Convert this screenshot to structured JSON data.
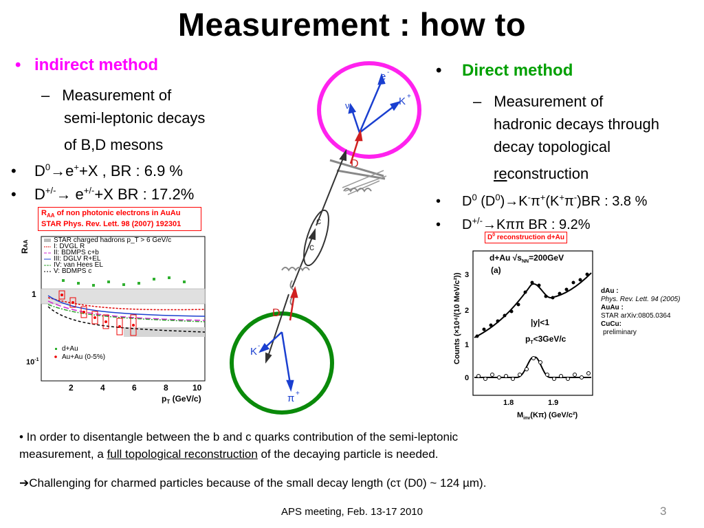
{
  "title": "Measurement : how to",
  "indirect": {
    "heading": "indirect method",
    "sub_line1": "Measurement of",
    "sub_line2": "semi-leptonic decays",
    "sub_line3": "of B,D mesons",
    "b1_prefix": "D",
    "b1_text": "+X , BR : 6.9 %",
    "b2_prefix": "D",
    "b2_text": "+X  BR : 17.2%"
  },
  "direct": {
    "heading": "Direct method",
    "sub_line1": "Measurement of",
    "sub_line2": "hadronic decays through",
    "sub_line3": "decay topological",
    "sub_line4a": "re",
    "sub_line4b": "construction",
    "b1_text": "D0 (D0)→K-π+(K+π-)BR : 3.8 %",
    "b2_text": "BR : 9.2%"
  },
  "raa_plot": {
    "box_line1": "of non photonic electrons in AuAu",
    "box_line2": "STAR Phys. Rev. Lett. 98 (2007) 192301",
    "ylabel": "R",
    "ysub": "AA",
    "xlabel": "p",
    "xsub": "T",
    "xunit": "(GeV/c)",
    "legend": [
      "STAR charged hadrons p_T > 6 GeV/c",
      "I: DVGL R",
      "II: BDMPS c+b",
      "III: DGLV R+EL",
      "IV: van Hees EL",
      "V: BDMPS c"
    ],
    "legend2": [
      "d+Au",
      "Au+Au (0-5%)"
    ],
    "xticks": [
      "2",
      "4",
      "6",
      "8",
      "10"
    ],
    "yticks": [
      "1",
      "10"
    ]
  },
  "d0_plot": {
    "box": "D0 reconstruction d+Au",
    "label_system": "d+Au",
    "label_energy": "=200GeV",
    "label_a": "(a)",
    "label_y": "|y|<1",
    "label_pt": "<3GeV/c",
    "ylabel": "Counts (×10⁴/(10 MeV/c²))",
    "xlabel": "(GeV/c²)",
    "xticks": [
      "1.8",
      "1.9"
    ],
    "yticks": [
      "0",
      "1",
      "2",
      "3"
    ]
  },
  "refs": {
    "dau": "dAu :",
    "dau_ref": "Phys. Rev. Lett. 94 (2005)",
    "auau": "AuAu :",
    "auau_ref": "STAR arXiv:0805.0364",
    "cucu": "CuCu:",
    "cucu_ref": "preliminary"
  },
  "diagram": {
    "e_minus": "e",
    "nu_bar": "ν",
    "k_plus": "K",
    "d0bar": "D",
    "cbar": "c",
    "c": "c",
    "d0": "D",
    "k_minus": "K",
    "pi_plus": "π"
  },
  "notes": {
    "line1": "• In order to disentangle between the b and c quarks contribution of the semi-leptonic",
    "line2a": "measurement, a ",
    "line2b": "full topological reconstruction",
    "line2c": " of the decaying particle is needed.",
    "line3": "Challenging for charmed particles because of the small decay length (cτ (D0) ~ 124 µm)."
  },
  "footer": {
    "text": "APS meeting, Feb. 13-17 2010",
    "page": "3"
  },
  "colors": {
    "magenta": "#ff00ff",
    "green": "#00a000",
    "red": "#ff0000",
    "blue": "#1a3fd0",
    "circle_green": "#0a8a0a"
  }
}
